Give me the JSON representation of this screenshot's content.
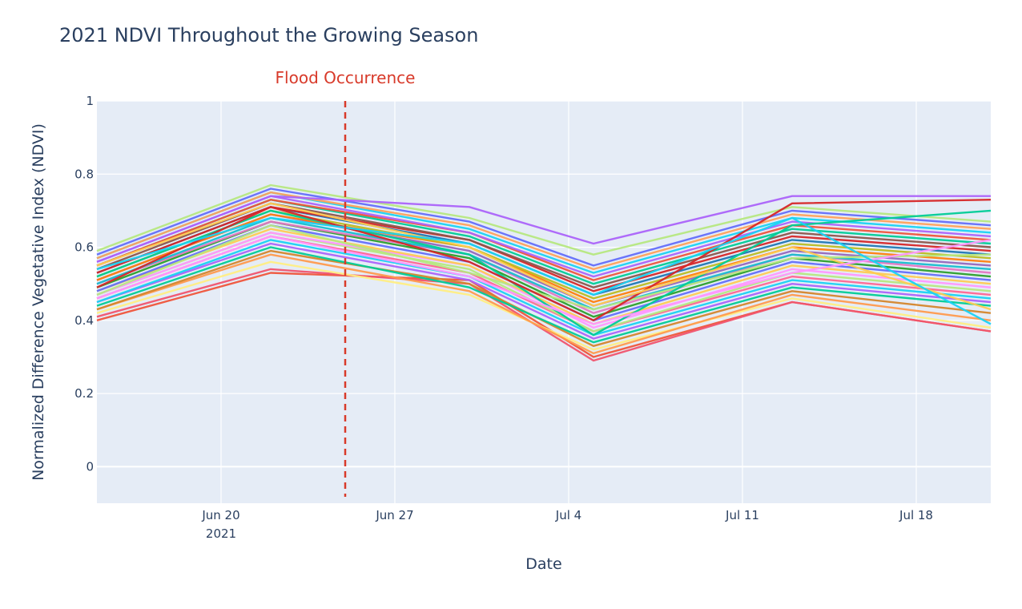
{
  "chart_data": {
    "type": "line",
    "title": "2021 NDVI Throughout the Growing Season",
    "xlabel": "Date",
    "ylabel": "Normalized Difference Vegetative Index (NDVI)",
    "x_range": [
      "2021-06-15",
      "2021-07-21"
    ],
    "ylim": [
      -0.1,
      1.0
    ],
    "y_ticks": [
      "0",
      "0.2",
      "0.4",
      "0.6",
      "0.8",
      "1"
    ],
    "x_ticks": [
      {
        "date": "2021-06-20",
        "label": "Jun 20",
        "sublabel": "2021"
      },
      {
        "date": "2021-06-27",
        "label": "Jun 27",
        "sublabel": ""
      },
      {
        "date": "2021-07-04",
        "label": "Jul 4",
        "sublabel": ""
      },
      {
        "date": "2021-07-11",
        "label": "Jul 11",
        "sublabel": ""
      },
      {
        "date": "2021-07-18",
        "label": "Jul 18",
        "sublabel": ""
      }
    ],
    "observation_dates": [
      "2021-06-15",
      "2021-06-22",
      "2021-06-30",
      "2021-07-05",
      "2021-07-13",
      "2021-07-21"
    ],
    "annotation": {
      "label": "Flood Occurrence",
      "date": "2021-06-25",
      "color": "#d83a2a",
      "style": "dashed"
    },
    "plot_background": "#e5ecf6",
    "grid": true,
    "series": [
      {
        "values": [
          0.4,
          0.53,
          0.51,
          0.3,
          0.45,
          0.37
        ],
        "color": "#ef553b"
      },
      {
        "values": [
          0.41,
          0.54,
          0.5,
          0.29,
          0.45,
          0.37
        ],
        "color": "#f0546e"
      },
      {
        "values": [
          0.42,
          0.56,
          0.47,
          0.32,
          0.46,
          0.38
        ],
        "color": "#ffee83"
      },
      {
        "values": [
          0.43,
          0.58,
          0.48,
          0.31,
          0.47,
          0.4
        ],
        "color": "#ff9a4d"
      },
      {
        "values": [
          0.43,
          0.59,
          0.5,
          0.33,
          0.48,
          0.42
        ],
        "color": "#d4862c"
      },
      {
        "values": [
          0.44,
          0.6,
          0.49,
          0.34,
          0.49,
          0.44
        ],
        "color": "#00cc96"
      },
      {
        "values": [
          0.45,
          0.61,
          0.51,
          0.35,
          0.5,
          0.45
        ],
        "color": "#ab63fa"
      },
      {
        "values": [
          0.45,
          0.62,
          0.52,
          0.36,
          0.51,
          0.46
        ],
        "color": "#19d3f3"
      },
      {
        "values": [
          0.46,
          0.63,
          0.53,
          0.37,
          0.52,
          0.47
        ],
        "color": "#ff6692"
      },
      {
        "values": [
          0.47,
          0.64,
          0.54,
          0.37,
          0.53,
          0.48
        ],
        "color": "#b6e880"
      },
      {
        "values": [
          0.47,
          0.64,
          0.55,
          0.38,
          0.54,
          0.49
        ],
        "color": "#ff97ff"
      },
      {
        "values": [
          0.48,
          0.65,
          0.55,
          0.39,
          0.55,
          0.5
        ],
        "color": "#fecb52"
      },
      {
        "values": [
          0.48,
          0.66,
          0.56,
          0.4,
          0.56,
          0.51
        ],
        "color": "#636efa"
      },
      {
        "values": [
          0.49,
          0.67,
          0.57,
          0.41,
          0.57,
          0.52
        ],
        "color": "#2ca02c"
      },
      {
        "values": [
          0.5,
          0.67,
          0.58,
          0.42,
          0.58,
          0.53
        ],
        "color": "#e377c2"
      },
      {
        "values": [
          0.5,
          0.68,
          0.58,
          0.43,
          0.58,
          0.54
        ],
        "color": "#17becf"
      },
      {
        "values": [
          0.51,
          0.69,
          0.59,
          0.44,
          0.59,
          0.55
        ],
        "color": "#9467bd"
      },
      {
        "values": [
          0.51,
          0.69,
          0.6,
          0.45,
          0.6,
          0.56
        ],
        "color": "#ff7f0e"
      },
      {
        "values": [
          0.52,
          0.7,
          0.6,
          0.46,
          0.61,
          0.57
        ],
        "color": "#bcbd22"
      },
      {
        "values": [
          0.53,
          0.71,
          0.61,
          0.47,
          0.62,
          0.58
        ],
        "color": "#1f77b4"
      },
      {
        "values": [
          0.53,
          0.71,
          0.62,
          0.48,
          0.63,
          0.59
        ],
        "color": "#d62728"
      },
      {
        "values": [
          0.54,
          0.72,
          0.62,
          0.49,
          0.64,
          0.6
        ],
        "color": "#8c564b"
      },
      {
        "values": [
          0.55,
          0.73,
          0.63,
          0.5,
          0.65,
          0.61
        ],
        "color": "#00cc96"
      },
      {
        "values": [
          0.55,
          0.73,
          0.64,
          0.51,
          0.66,
          0.62
        ],
        "color": "#ef553b"
      },
      {
        "values": [
          0.56,
          0.74,
          0.64,
          0.52,
          0.67,
          0.63
        ],
        "color": "#ab63fa"
      },
      {
        "values": [
          0.57,
          0.75,
          0.65,
          0.53,
          0.68,
          0.64
        ],
        "color": "#19d3f3"
      },
      {
        "values": [
          0.57,
          0.75,
          0.66,
          0.54,
          0.69,
          0.65
        ],
        "color": "#ffa15a"
      },
      {
        "values": [
          0.58,
          0.76,
          0.67,
          0.55,
          0.7,
          0.66
        ],
        "color": "#636efa"
      },
      {
        "values": [
          0.59,
          0.77,
          0.68,
          0.58,
          0.71,
          0.67
        ],
        "color": "#b6e880"
      },
      {
        "values": [
          0.56,
          0.74,
          0.71,
          0.61,
          0.74,
          0.74
        ],
        "color": "#ab63fa"
      },
      {
        "values": [
          0.47,
          0.66,
          0.53,
          0.43,
          0.57,
          0.58
        ],
        "color": "#b6e880"
      },
      {
        "values": [
          0.52,
          0.7,
          0.58,
          0.36,
          0.66,
          0.7
        ],
        "color": "#00cc96"
      },
      {
        "values": [
          0.49,
          0.71,
          0.56,
          0.4,
          0.72,
          0.73
        ],
        "color": "#d62728"
      },
      {
        "values": [
          0.55,
          0.72,
          0.6,
          0.44,
          0.6,
          0.43
        ],
        "color": "#fecb52"
      },
      {
        "values": [
          0.46,
          0.63,
          0.52,
          0.39,
          0.53,
          0.62
        ],
        "color": "#ff97ff"
      },
      {
        "values": [
          0.54,
          0.68,
          0.61,
          0.47,
          0.68,
          0.39
        ],
        "color": "#19d3f3"
      }
    ]
  }
}
